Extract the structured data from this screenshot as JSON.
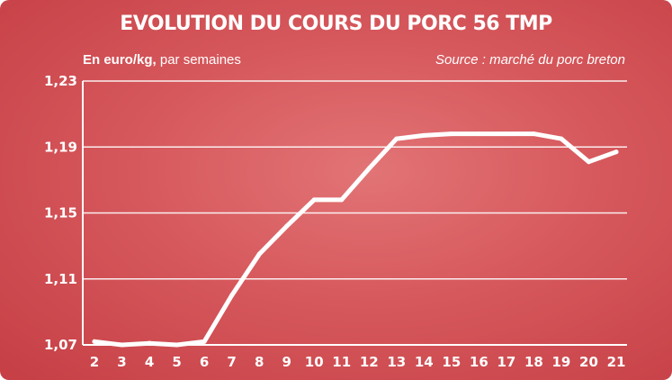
{
  "chart_data": {
    "type": "line",
    "title": "EVOLUTION DU COURS DU PORC 56 TMP",
    "subtitle_bold": "En euro/kg,",
    "subtitle_rest": " par semaines",
    "source": "Source : marché du porc breton",
    "x": [
      2,
      3,
      4,
      5,
      6,
      7,
      8,
      9,
      10,
      11,
      12,
      13,
      14,
      15,
      16,
      17,
      18,
      19,
      20,
      21
    ],
    "x_labels": [
      "2",
      "3",
      "4",
      "5",
      "6",
      "7",
      "8",
      "9",
      "10",
      "11",
      "12",
      "13",
      "14",
      "15",
      "16",
      "17",
      "18",
      "19",
      "20",
      "21"
    ],
    "y_labels": [
      "1,23",
      "1,19",
      "1,15",
      "1,11",
      "1,07"
    ],
    "y_ticks": [
      1.23,
      1.19,
      1.15,
      1.11,
      1.07
    ],
    "ylim": [
      1.07,
      1.23
    ],
    "series": [
      {
        "values": [
          1.072,
          1.07,
          1.071,
          1.07,
          1.072,
          1.1,
          1.125,
          1.142,
          1.158,
          1.158,
          1.177,
          1.195,
          1.197,
          1.198,
          1.198,
          1.198,
          1.198,
          1.195,
          1.181,
          1.187
        ]
      }
    ],
    "grid": true,
    "line_color": "#ffffff",
    "background_color": "#d6585c"
  }
}
